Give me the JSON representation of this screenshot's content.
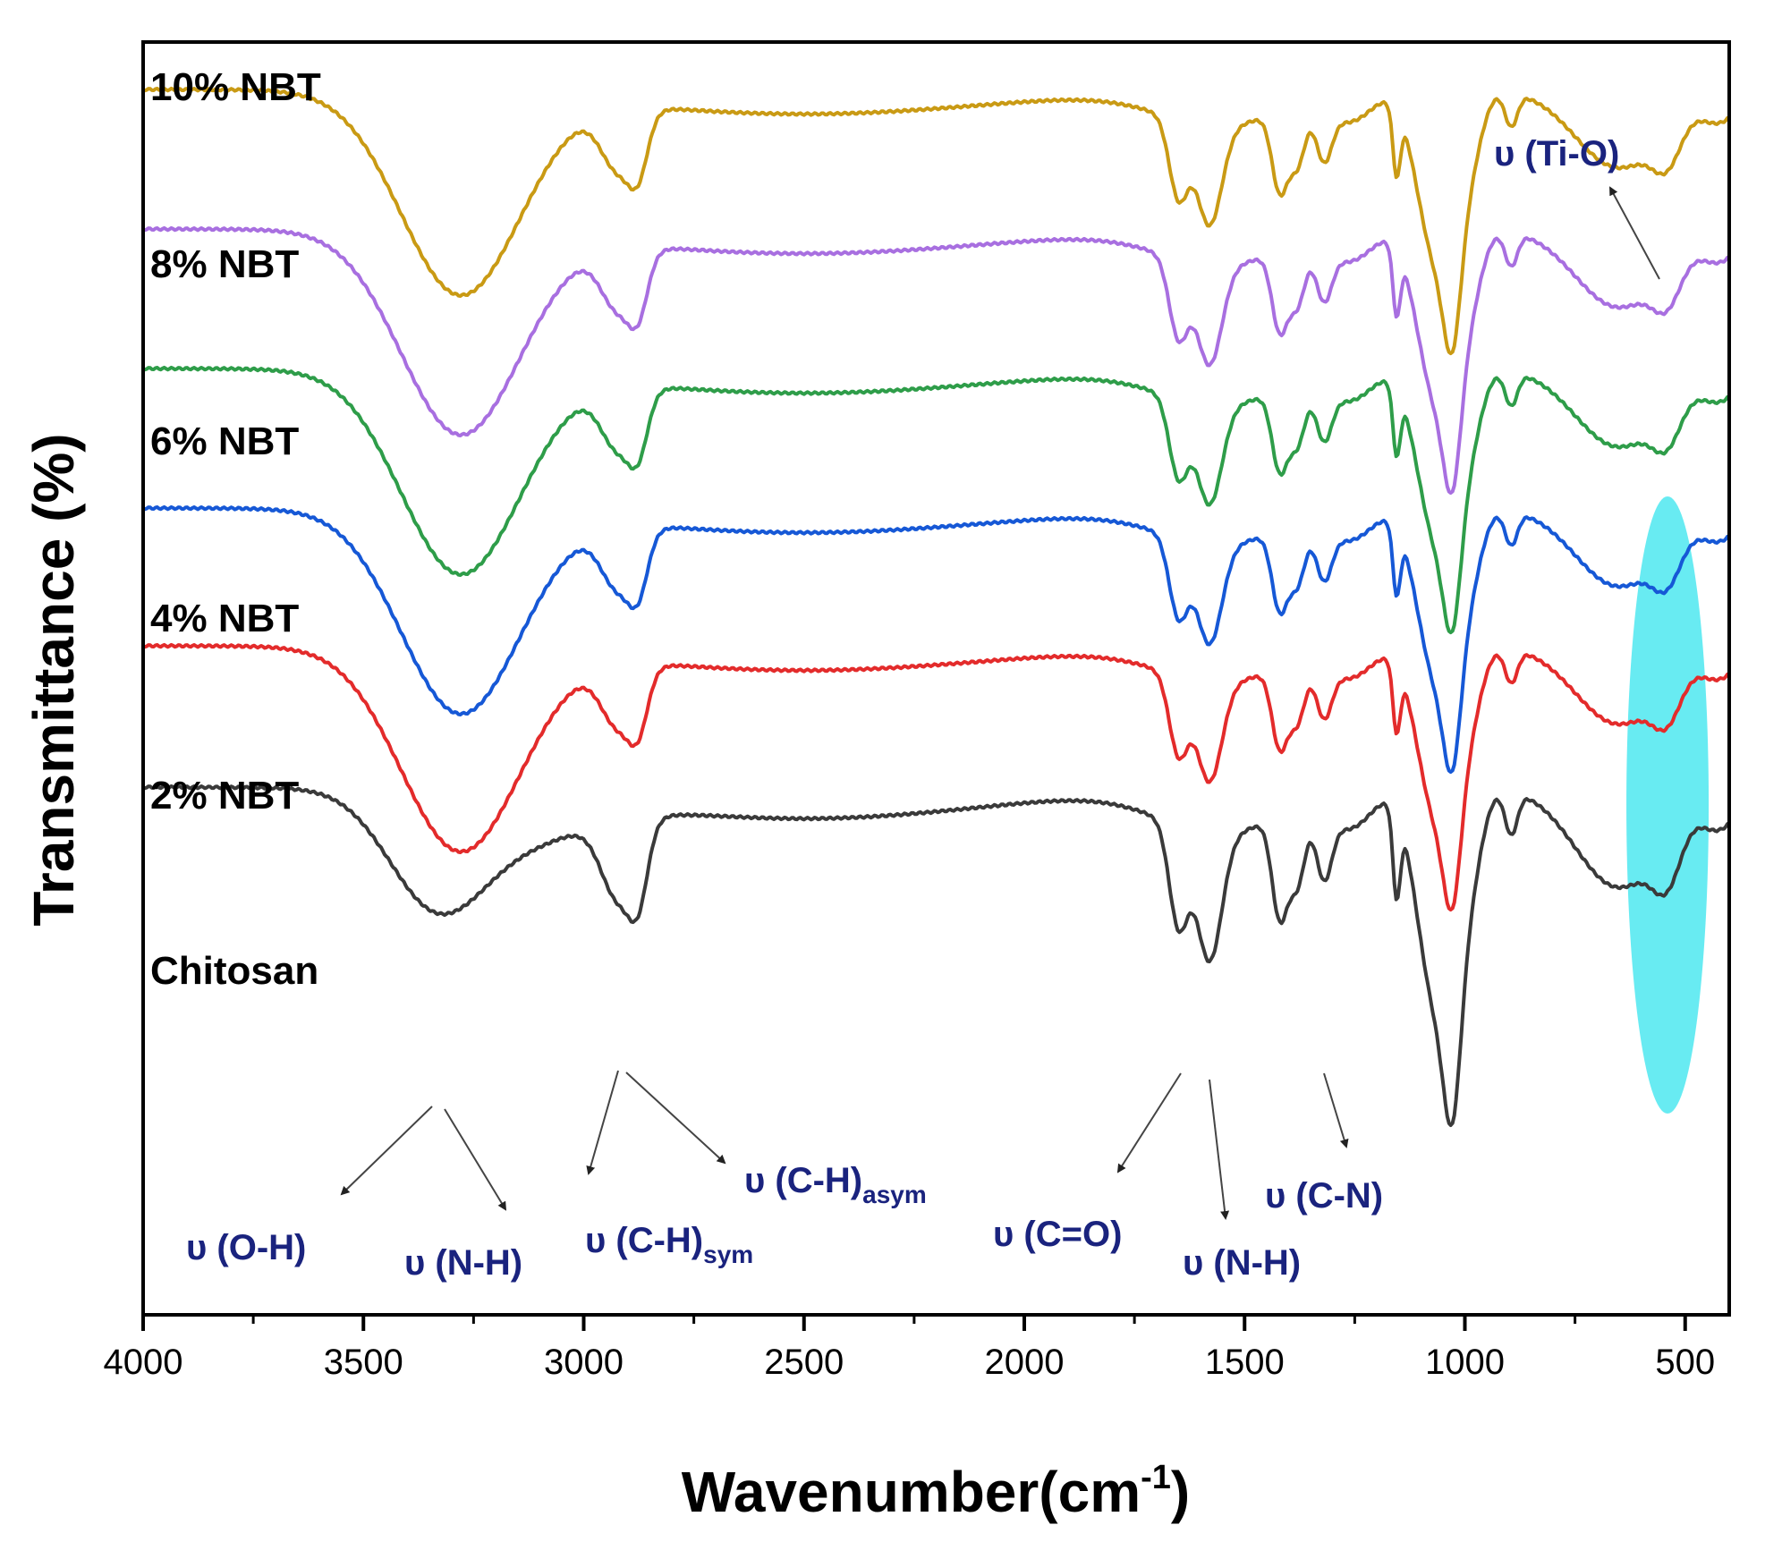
{
  "chart_data": {
    "type": "line",
    "title": "",
    "xlabel_main": "Wavenumber(cm",
    "xlabel_sup": "-1",
    "xlabel_close": ")",
    "ylabel": "Transmittance (%)",
    "xlim": [
      4000,
      400
    ],
    "xticks": [
      "4000",
      "3500",
      "3000",
      "2500",
      "2000",
      "1500",
      "1000",
      "500"
    ],
    "tick_values": [
      4000,
      3500,
      3000,
      2500,
      2000,
      1500,
      1000,
      500
    ],
    "highlight_band": {
      "x": 540,
      "x_min": 470,
      "x_max": 620,
      "color": "#4de8f0"
    },
    "series": [
      {
        "name": "10% NBT",
        "color": "#c99a14",
        "offset": 5
      },
      {
        "name": "8% NBT",
        "color": "#a86fe0",
        "offset": 4
      },
      {
        "name": "6% NBT",
        "color": "#2e9d49",
        "offset": 3
      },
      {
        "name": "4% NBT",
        "color": "#1658d6",
        "offset": 2
      },
      {
        "name": "2% NBT",
        "color": "#e32b2b",
        "offset": 1
      },
      {
        "name": "Chitosan",
        "color": "#3a3a3a",
        "offset": 0
      }
    ],
    "annotations": [
      {
        "id": "oh",
        "label": "υ (O-H)",
        "sub": "",
        "x_data": 3340
      },
      {
        "id": "nh1",
        "label": "υ (N-H)",
        "sub": "",
        "x_data": 3300
      },
      {
        "id": "chsym",
        "label": "υ (C-H)",
        "sub": "sym",
        "x_data": 2920
      },
      {
        "id": "chasym",
        "label": "υ (C-H)",
        "sub": "asym",
        "x_data": 2890
      },
      {
        "id": "co",
        "label": "υ (C=O)",
        "sub": "",
        "x_data": 1650
      },
      {
        "id": "nh2",
        "label": "υ (N-H)",
        "sub": "",
        "x_data": 1580
      },
      {
        "id": "cn",
        "label": "υ (C-N)",
        "sub": "",
        "x_data": 1320
      },
      {
        "id": "tio",
        "label": "υ (Ti-O)",
        "sub": "",
        "x_data": 540
      }
    ]
  }
}
